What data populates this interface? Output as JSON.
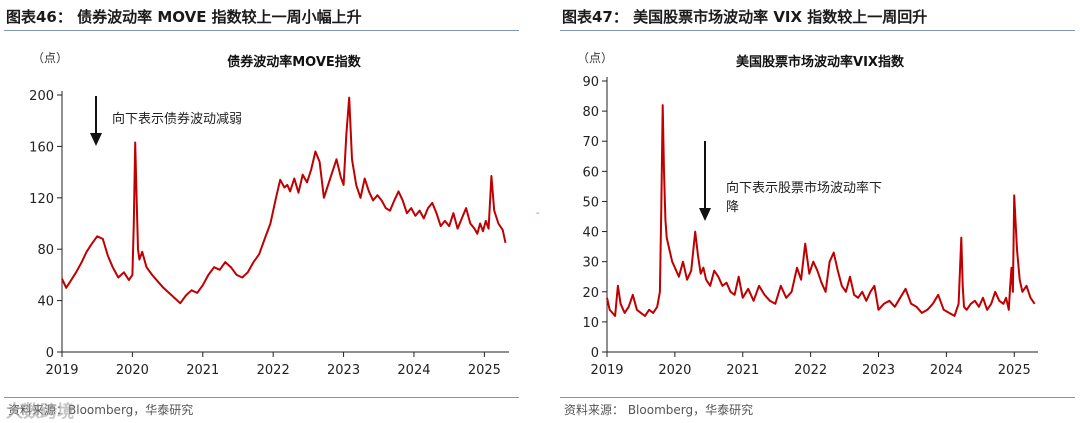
{
  "colors": {
    "series": "#c00000",
    "rule": "#7f95b8",
    "axis": "#222222"
  },
  "watermark": "大数跨境",
  "panels": [
    {
      "figure_title": "图表46：  债券波动率 MOVE 指数较上一周小幅上升",
      "source": "资料来源：Bloomberg，华泰研究",
      "chart_data": {
        "type": "line",
        "title": "债券波动率MOVE指数",
        "unit": "（点）",
        "xlabel": "",
        "ylabel": "（点）",
        "xlim": [
          2019.0,
          2025.35
        ],
        "ylim": [
          0,
          200
        ],
        "yticks": [
          0,
          40,
          80,
          120,
          160,
          200
        ],
        "xticks": [
          2019,
          2020,
          2021,
          2022,
          2023,
          2024,
          2025
        ],
        "xtick_labels": [
          "2019",
          "2020",
          "2021",
          "2022",
          "2023",
          "2024",
          "2025"
        ],
        "annotation": "向下表示债券波动减弱",
        "series": [
          {
            "name": "MOVE",
            "x": [
              2019.0,
              2019.06,
              2019.12,
              2019.2,
              2019.28,
              2019.35,
              2019.42,
              2019.5,
              2019.58,
              2019.65,
              2019.72,
              2019.8,
              2019.88,
              2019.95,
              2020.0,
              2020.02,
              2020.04,
              2020.06,
              2020.08,
              2020.1,
              2020.14,
              2020.2,
              2020.28,
              2020.36,
              2020.44,
              2020.52,
              2020.6,
              2020.68,
              2020.76,
              2020.84,
              2020.92,
              2021.0,
              2021.08,
              2021.16,
              2021.24,
              2021.32,
              2021.4,
              2021.48,
              2021.56,
              2021.64,
              2021.72,
              2021.8,
              2021.88,
              2021.96,
              2022.04,
              2022.1,
              2022.16,
              2022.2,
              2022.24,
              2022.3,
              2022.36,
              2022.42,
              2022.48,
              2022.54,
              2022.6,
              2022.66,
              2022.72,
              2022.78,
              2022.84,
              2022.9,
              2022.96,
              2023.0,
              2023.04,
              2023.08,
              2023.12,
              2023.18,
              2023.24,
              2023.3,
              2023.36,
              2023.42,
              2023.48,
              2023.54,
              2023.6,
              2023.66,
              2023.72,
              2023.78,
              2023.84,
              2023.9,
              2023.96,
              2024.02,
              2024.08,
              2024.14,
              2024.2,
              2024.26,
              2024.32,
              2024.38,
              2024.44,
              2024.5,
              2024.56,
              2024.62,
              2024.68,
              2024.74,
              2024.8,
              2024.86,
              2024.9,
              2024.94,
              2024.98,
              2025.02,
              2025.06,
              2025.1,
              2025.14,
              2025.2,
              2025.26,
              2025.3
            ],
            "values": [
              57,
              50,
              55,
              62,
              70,
              78,
              84,
              90,
              88,
              75,
              66,
              58,
              62,
              56,
              60,
              100,
              163,
              120,
              80,
              72,
              78,
              66,
              60,
              55,
              50,
              46,
              42,
              38,
              44,
              48,
              46,
              52,
              60,
              66,
              64,
              70,
              66,
              60,
              58,
              62,
              70,
              76,
              88,
              100,
              120,
              134,
              128,
              130,
              125,
              135,
              124,
              138,
              132,
              142,
              156,
              148,
              120,
              130,
              140,
              150,
              136,
              130,
              170,
              198,
              150,
              130,
              120,
              135,
              125,
              118,
              122,
              118,
              112,
              110,
              118,
              125,
              118,
              108,
              112,
              106,
              110,
              104,
              112,
              116,
              108,
              98,
              102,
              98,
              108,
              96,
              104,
              112,
              100,
              96,
              92,
              100,
              94,
              102,
              96,
              137,
              110,
              100,
              95,
              85
            ]
          }
        ]
      }
    },
    {
      "figure_title": "图表47：  美国股票市场波动率 VIX 指数较上一周回升",
      "source": "资料来源：  Bloomberg，华泰研究",
      "chart_data": {
        "type": "line",
        "title": "美国股票市场波动率VIX指数",
        "unit": "（点）",
        "xlabel": "",
        "ylabel": "（点）",
        "xlim": [
          2019.0,
          2025.35
        ],
        "ylim": [
          0,
          90
        ],
        "yticks": [
          0,
          10,
          20,
          30,
          40,
          50,
          60,
          70,
          80,
          90
        ],
        "xticks": [
          2019,
          2020,
          2021,
          2022,
          2023,
          2024,
          2025
        ],
        "xtick_labels": [
          "2019",
          "2020",
          "2021",
          "2022",
          "2023",
          "2024",
          "2025"
        ],
        "annotation": "向下表示股票市场波动率下降",
        "series": [
          {
            "name": "VIX",
            "x": [
              2019.0,
              2019.04,
              2019.08,
              2019.12,
              2019.16,
              2019.2,
              2019.26,
              2019.32,
              2019.38,
              2019.44,
              2019.5,
              2019.56,
              2019.62,
              2019.68,
              2019.74,
              2019.78,
              2019.8,
              2019.82,
              2019.84,
              2019.86,
              2019.88,
              2019.92,
              2019.96,
              2020.0,
              2020.06,
              2020.12,
              2020.18,
              2020.24,
              2020.3,
              2020.34,
              2020.38,
              2020.42,
              2020.46,
              2020.52,
              2020.58,
              2020.64,
              2020.7,
              2020.76,
              2020.82,
              2020.88,
              2020.94,
              2021.0,
              2021.08,
              2021.16,
              2021.24,
              2021.32,
              2021.4,
              2021.48,
              2021.56,
              2021.64,
              2021.72,
              2021.8,
              2021.86,
              2021.92,
              2021.98,
              2022.04,
              2022.1,
              2022.16,
              2022.22,
              2022.28,
              2022.34,
              2022.4,
              2022.46,
              2022.52,
              2022.58,
              2022.64,
              2022.7,
              2022.76,
              2022.82,
              2022.88,
              2022.94,
              2023.0,
              2023.08,
              2023.16,
              2023.24,
              2023.32,
              2023.4,
              2023.48,
              2023.56,
              2023.64,
              2023.72,
              2023.8,
              2023.88,
              2023.96,
              2024.04,
              2024.12,
              2024.18,
              2024.22,
              2024.24,
              2024.26,
              2024.3,
              2024.36,
              2024.42,
              2024.48,
              2024.54,
              2024.6,
              2024.66,
              2024.72,
              2024.78,
              2024.84,
              2024.88,
              2024.92,
              2024.94,
              2024.96,
              2024.98,
              2025.0,
              2025.04,
              2025.08,
              2025.12,
              2025.18,
              2025.24,
              2025.3
            ],
            "values": [
              18,
              14,
              13,
              12,
              22,
              16,
              13,
              15,
              19,
              14,
              13,
              12,
              14,
              13,
              15,
              20,
              48,
              82,
              60,
              44,
              38,
              34,
              30,
              28,
              25,
              30,
              24,
              27,
              40,
              32,
              26,
              28,
              24,
              22,
              27,
              25,
              22,
              23,
              20,
              19,
              25,
              18,
              21,
              17,
              22,
              19,
              17,
              16,
              22,
              18,
              20,
              28,
              24,
              36,
              26,
              30,
              27,
              23,
              20,
              30,
              33,
              27,
              22,
              20,
              25,
              19,
              18,
              20,
              17,
              20,
              22,
              14,
              16,
              17,
              15,
              18,
              21,
              16,
              15,
              13,
              14,
              16,
              19,
              14,
              13,
              12,
              16,
              38,
              22,
              15,
              14,
              16,
              17,
              15,
              18,
              14,
              16,
              20,
              17,
              16,
              18,
              14,
              22,
              28,
              20,
              52,
              34,
              24,
              20,
              22,
              18,
              16
            ]
          }
        ]
      }
    }
  ]
}
